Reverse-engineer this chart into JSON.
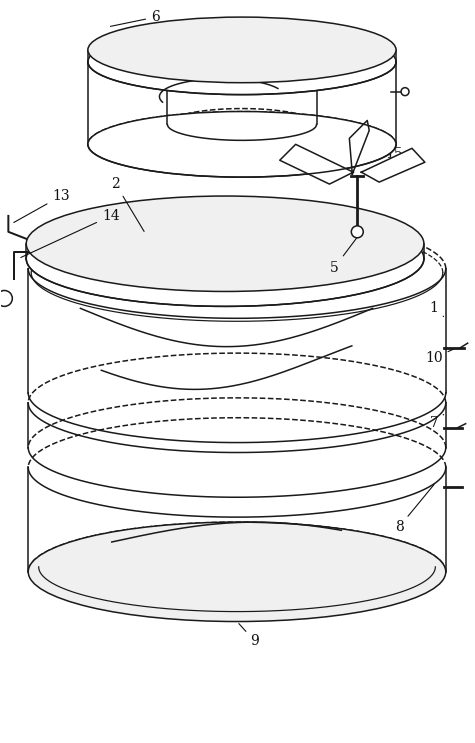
{
  "bg_color": "#ffffff",
  "line_color": "#1a1a1a",
  "lw": 1.1,
  "fig_width": 4.75,
  "fig_height": 7.43,
  "label_fontsize": 10
}
